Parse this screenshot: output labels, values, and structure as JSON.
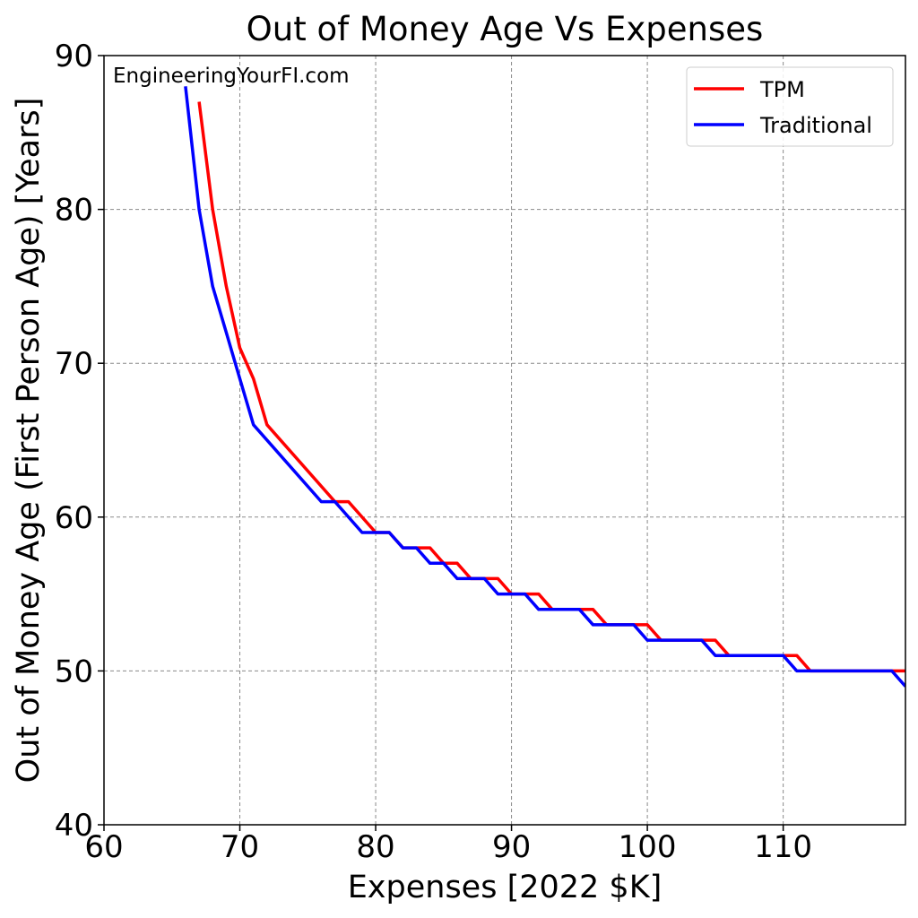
{
  "chart_data": {
    "type": "line",
    "title": "Out of Money Age Vs Expenses",
    "xlabel": "Expenses [2022 $K]",
    "ylabel": "Out of Money Age (First Person Age) [Years]",
    "annotation": "EngineeringYourFI.com",
    "xlim": [
      60,
      119
    ],
    "ylim": [
      40,
      90
    ],
    "xticks": [
      60,
      70,
      80,
      90,
      100,
      110
    ],
    "yticks": [
      40,
      50,
      60,
      70,
      80,
      90
    ],
    "grid": true,
    "legend_position": "top-right",
    "series": [
      {
        "name": "TPM",
        "color": "#ff0000",
        "x": [
          67,
          68,
          69,
          70,
          71,
          72,
          77,
          78,
          80,
          81,
          82,
          83,
          84,
          85,
          86,
          87,
          88,
          89,
          90,
          91,
          92,
          93,
          94,
          95,
          96,
          97,
          98,
          99,
          100,
          101,
          102,
          103,
          104,
          105,
          106,
          107,
          108,
          109,
          110,
          111,
          112,
          113,
          114,
          115,
          116,
          117,
          118,
          119
        ],
        "y": [
          87,
          80,
          75,
          71,
          69,
          66,
          61,
          61,
          59,
          59,
          58,
          58,
          58,
          57,
          57,
          56,
          56,
          56,
          55,
          55,
          55,
          54,
          54,
          54,
          54,
          53,
          53,
          53,
          53,
          52,
          52,
          52,
          52,
          52,
          51,
          51,
          51,
          51,
          51,
          51,
          50,
          50,
          50,
          50,
          50,
          50,
          50,
          50
        ]
      },
      {
        "name": "Traditional",
        "color": "#0000ff",
        "x": [
          66,
          67,
          68,
          69,
          70,
          71,
          76,
          77,
          79,
          80,
          81,
          82,
          83,
          84,
          85,
          86,
          87,
          88,
          89,
          90,
          91,
          92,
          93,
          94,
          95,
          96,
          97,
          98,
          99,
          100,
          101,
          102,
          103,
          104,
          105,
          106,
          107,
          108,
          109,
          110,
          111,
          112,
          113,
          114,
          115,
          116,
          117,
          118,
          119
        ],
        "y": [
          88,
          80,
          75,
          72,
          69,
          66,
          61,
          61,
          59,
          59,
          59,
          58,
          58,
          57,
          57,
          56,
          56,
          56,
          55,
          55,
          55,
          54,
          54,
          54,
          54,
          53,
          53,
          53,
          53,
          52,
          52,
          52,
          52,
          52,
          51,
          51,
          51,
          51,
          51,
          51,
          50,
          50,
          50,
          50,
          50,
          50,
          50,
          50,
          49
        ]
      }
    ]
  }
}
